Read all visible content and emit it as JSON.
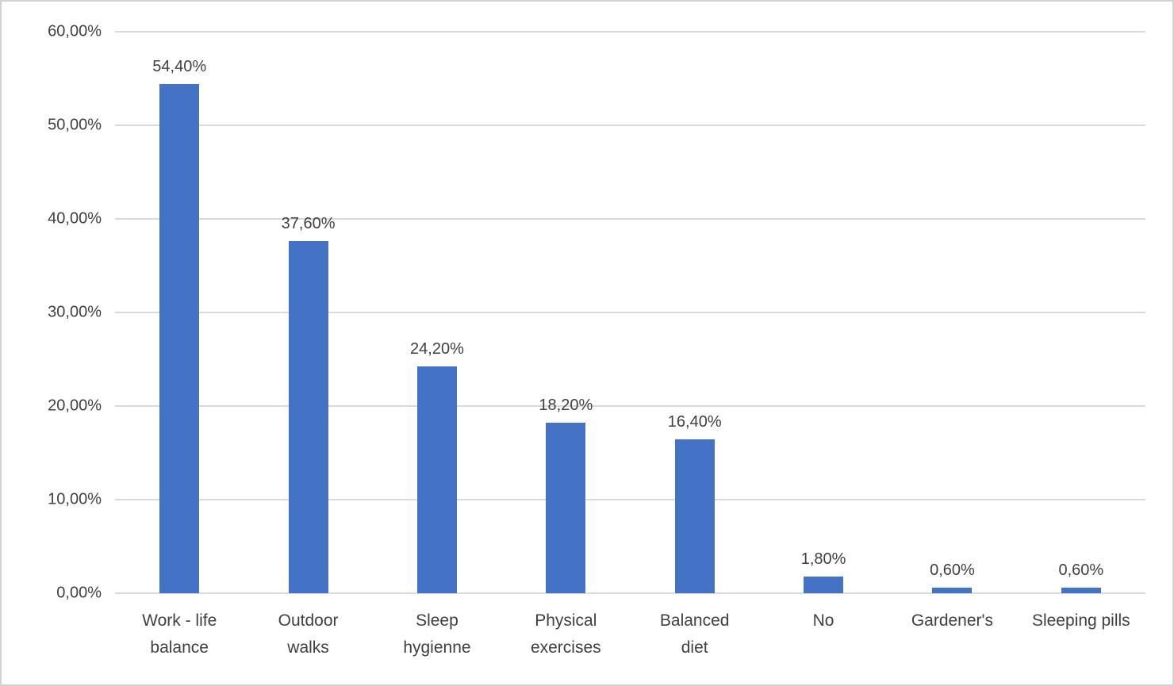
{
  "chart_data": {
    "type": "bar",
    "title": "",
    "xlabel": "",
    "ylabel": "",
    "categories": [
      "Work - life balance",
      "Outdoor walks",
      "Sleep hygienne",
      "Physical exercises",
      "Balanced diet",
      "No",
      "Gardener's",
      "Sleeping pills"
    ],
    "category_display": [
      "Work - life\nbalance",
      "Outdoor\nwalks",
      "Sleep\nhygienne",
      "Physical\nexercises",
      "Balanced\ndiet",
      "No",
      "Gardener's",
      "Sleeping pills"
    ],
    "values": [
      54.4,
      37.6,
      24.2,
      18.2,
      16.4,
      1.8,
      0.6,
      0.6
    ],
    "data_labels": [
      "54,40%",
      "37,60%",
      "24,20%",
      "18,20%",
      "16,40%",
      "1,80%",
      "0,60%",
      "0,60%"
    ],
    "ylim": [
      0,
      60
    ],
    "y_tick_step": 10,
    "y_tick_labels": [
      "0,00%",
      "10,00%",
      "20,00%",
      "30,00%",
      "40,00%",
      "50,00%",
      "60,00%"
    ],
    "grid": true,
    "legend": false,
    "colors": {
      "bar": "#4472C4",
      "gridline": "#D9D9D9",
      "text": "#404040",
      "frame_border": "#D2D2D2",
      "background": "#FFFFFF"
    }
  }
}
